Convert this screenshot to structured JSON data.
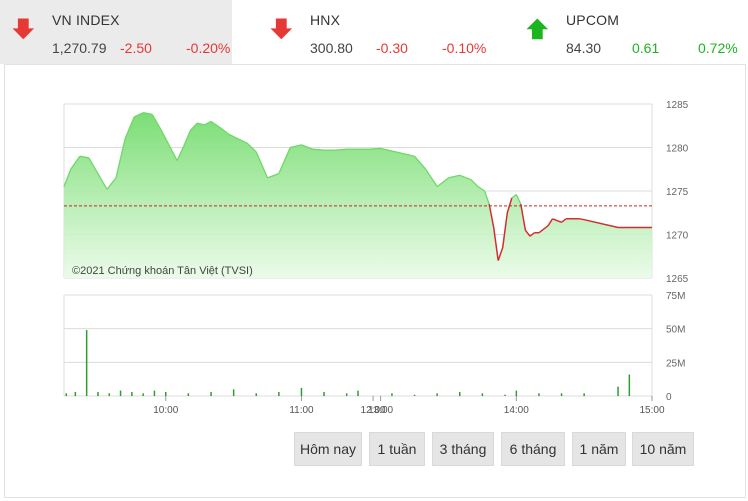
{
  "indices": [
    {
      "name": "VN INDEX",
      "value": "1,270.79",
      "change": "-2.50",
      "percent": "-0.20%",
      "direction": "down"
    },
    {
      "name": "HNX",
      "value": "300.80",
      "change": "-0.30",
      "percent": "-0.10%",
      "direction": "down"
    },
    {
      "name": "UPCOM",
      "value": "84.30",
      "change": "0.61",
      "percent": "0.72%",
      "direction": "up"
    }
  ],
  "colors": {
    "down": "#e53935",
    "up": "#1db51d",
    "area": "#8fe58a",
    "line_down": "#d32f2f",
    "volume": "#2e9e2e",
    "reference": "#c62828"
  },
  "watermark": "©2021 Chứng khoán Tân Việt (TVSI)",
  "ranges": [
    "Hôm nay",
    "1 tuần",
    "3 tháng",
    "6 tháng",
    "1 năm",
    "10 năm"
  ],
  "chart_data": {
    "type": "line",
    "reference": 1273.29,
    "ylim": [
      1265,
      1285
    ],
    "yticks": [
      "1285",
      "1280",
      "1275",
      "1270",
      "1265"
    ],
    "xticks": [
      "10:00",
      "11:00",
      "12:00",
      "13:00",
      "14:00",
      "15:00"
    ],
    "x": [
      "09:15",
      "09:18",
      "09:22",
      "09:26",
      "09:30",
      "09:34",
      "09:38",
      "09:42",
      "09:46",
      "09:50",
      "09:54",
      "09:58",
      "10:02",
      "10:05",
      "10:08",
      "10:11",
      "10:14",
      "10:17",
      "10:20",
      "10:24",
      "10:28",
      "10:32",
      "10:36",
      "10:40",
      "10:45",
      "10:50",
      "10:55",
      "11:00",
      "11:05",
      "11:10",
      "11:15",
      "11:20",
      "11:25",
      "11:30",
      "13:00",
      "13:05",
      "13:10",
      "13:15",
      "13:20",
      "13:25",
      "13:30",
      "13:35",
      "13:40",
      "13:43",
      "13:46",
      "13:48",
      "13:50",
      "13:52",
      "13:54",
      "13:56",
      "13:58",
      "14:00",
      "14:02",
      "14:04",
      "14:06",
      "14:08",
      "14:10",
      "14:12",
      "14:14",
      "14:16",
      "14:18",
      "14:20",
      "14:22",
      "14:24",
      "14:26",
      "14:28",
      "14:30",
      "14:45",
      "14:50",
      "15:00"
    ],
    "y": [
      1275.5,
      1277.5,
      1279.0,
      1278.8,
      1277.0,
      1275.2,
      1276.5,
      1281.0,
      1283.5,
      1284.0,
      1283.8,
      1282.0,
      1280.0,
      1278.5,
      1280.2,
      1282.0,
      1282.8,
      1282.6,
      1283.0,
      1282.3,
      1281.5,
      1281.0,
      1280.5,
      1279.5,
      1276.5,
      1277.0,
      1280.0,
      1280.3,
      1279.8,
      1279.7,
      1279.7,
      1279.8,
      1279.8,
      1279.8,
      1279.9,
      1279.6,
      1279.3,
      1279.0,
      1277.5,
      1275.5,
      1276.5,
      1276.8,
      1276.3,
      1275.5,
      1275.0,
      1273.5,
      1270.8,
      1267.0,
      1268.5,
      1272.5,
      1274.2,
      1274.6,
      1273.5,
      1270.5,
      1269.8,
      1270.2,
      1270.2,
      1270.6,
      1271.0,
      1271.8,
      1271.6,
      1271.4,
      1271.8,
      1271.8,
      1271.8,
      1271.8,
      1271.7,
      1270.8,
      1270.8,
      1270.8
    ],
    "volume": {
      "ylim": [
        0,
        75
      ],
      "yticks": [
        "75M",
        "50M",
        "25M",
        "0"
      ],
      "unit": "M",
      "x": [
        "09:16",
        "09:20",
        "09:25",
        "09:30",
        "09:35",
        "09:40",
        "09:45",
        "09:50",
        "09:55",
        "10:00",
        "10:10",
        "10:20",
        "10:30",
        "10:40",
        "10:50",
        "11:00",
        "11:10",
        "11:20",
        "11:25",
        "13:05",
        "13:15",
        "13:25",
        "13:35",
        "13:45",
        "13:55",
        "14:00",
        "14:10",
        "14:20",
        "14:30",
        "14:45",
        "14:50"
      ],
      "values": [
        2,
        3,
        49,
        3,
        2,
        4,
        3,
        2,
        4,
        3,
        2,
        3,
        5,
        2,
        3,
        6,
        3,
        2,
        4,
        2,
        1,
        2,
        3,
        2,
        1,
        4,
        2,
        2,
        2,
        7,
        16
      ]
    }
  }
}
